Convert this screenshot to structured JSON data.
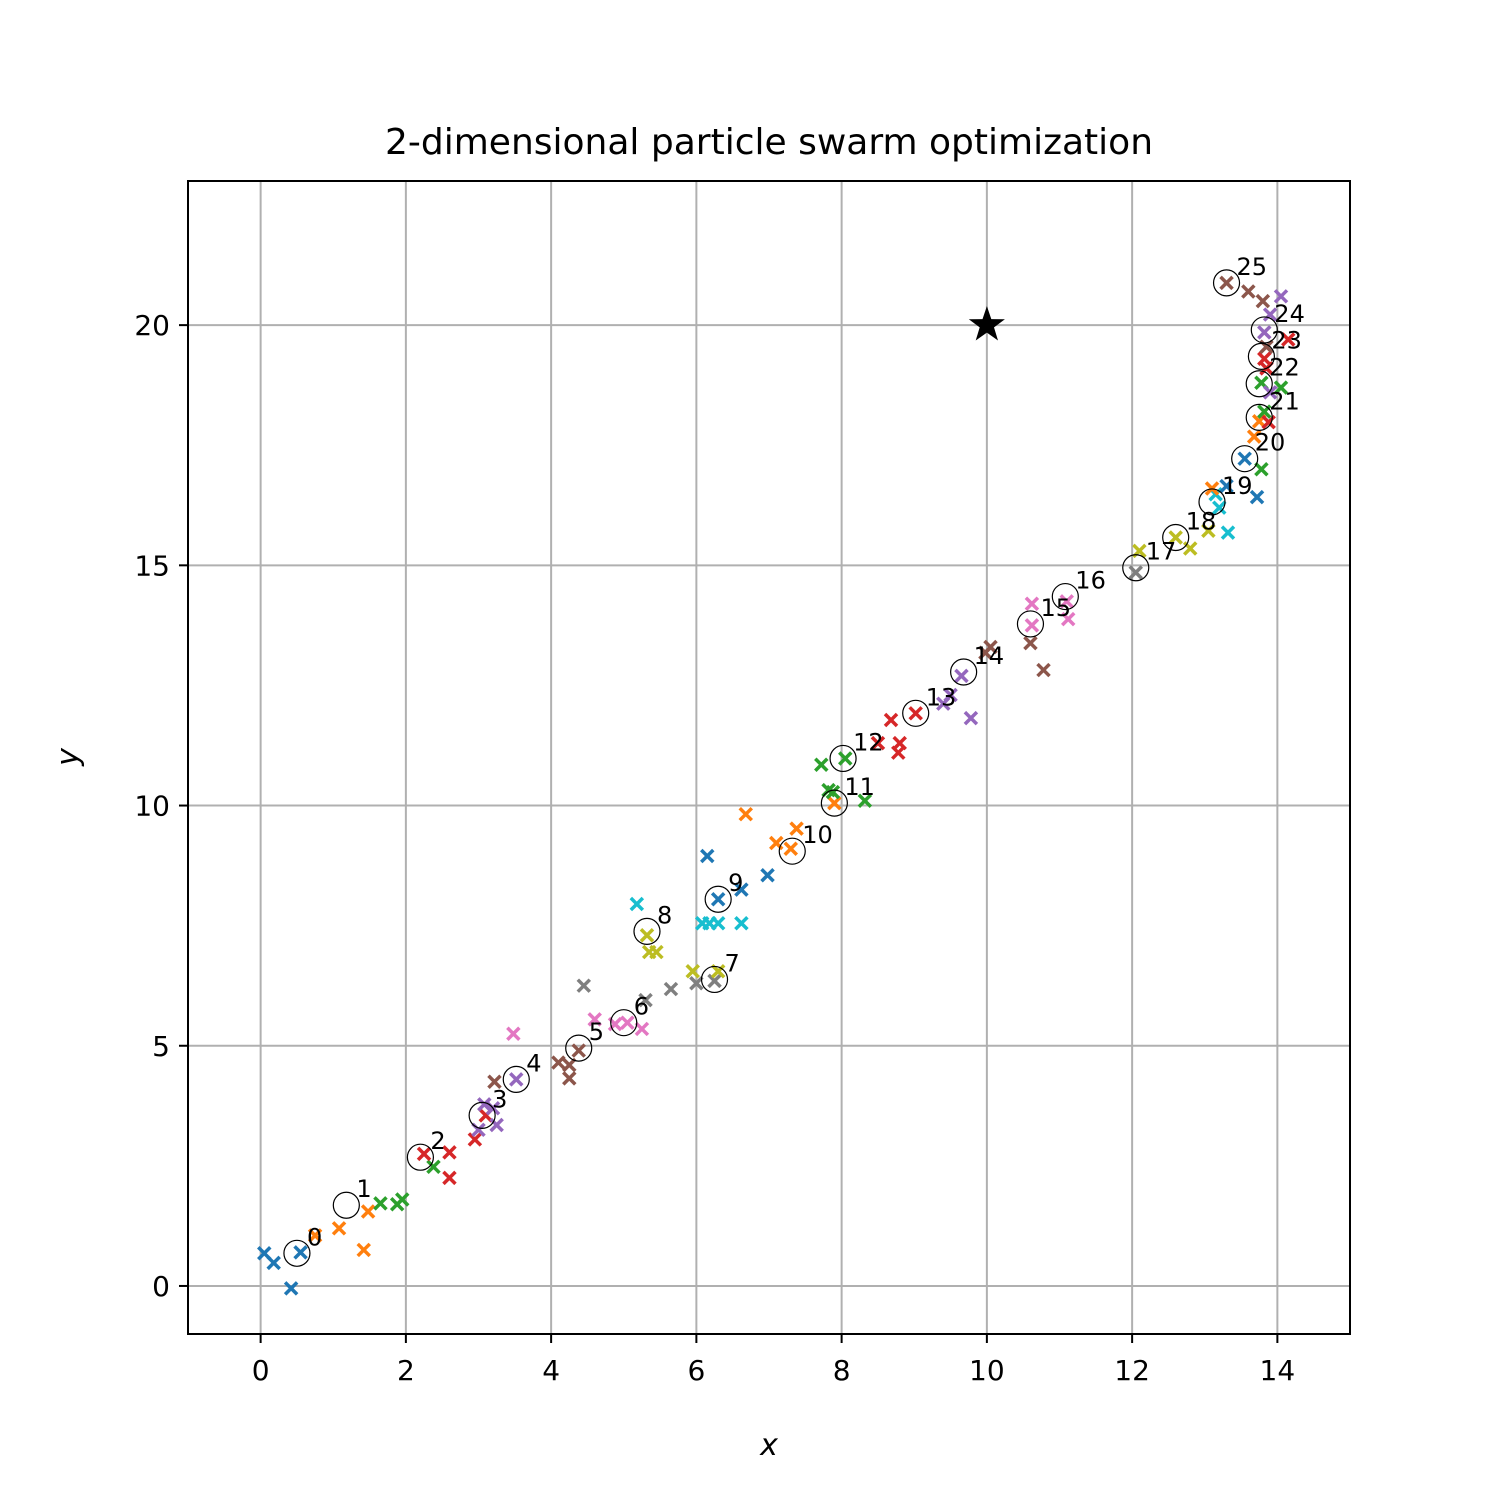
{
  "chart_data": {
    "type": "scatter",
    "title": "2-dimensional particle swarm optimization",
    "xlabel": "x",
    "ylabel": "y",
    "xlim": [
      -1,
      15
    ],
    "ylim": [
      -1,
      23
    ],
    "xticks": [
      0,
      2,
      4,
      6,
      8,
      10,
      12,
      14
    ],
    "yticks": [
      0,
      5,
      10,
      15,
      20
    ],
    "grid": true,
    "target": {
      "x": 10,
      "y": 20,
      "marker": "star"
    },
    "colors": [
      "#1f77b4",
      "#ff7f0e",
      "#2ca02c",
      "#d62728",
      "#9467bd",
      "#8c564b",
      "#e377c2",
      "#7f7f7f",
      "#bcbd22",
      "#17becf"
    ],
    "iterations": [
      {
        "label": "0",
        "best": [
          0.5,
          0.68
        ],
        "color": "#1f77b4",
        "particles": [
          [
            0.05,
            0.68
          ],
          [
            0.18,
            0.48
          ],
          [
            0.42,
            -0.05
          ],
          [
            0.55,
            0.7
          ]
        ]
      },
      {
        "label": "1",
        "best": [
          1.18,
          1.68
        ],
        "color": "#ff7f0e",
        "particles": [
          [
            0.75,
            1.05
          ],
          [
            1.08,
            1.2
          ],
          [
            1.42,
            0.75
          ],
          [
            1.48,
            1.55
          ]
        ]
      },
      {
        "label": "2",
        "best": [
          2.2,
          2.68
        ],
        "color": "#2ca02c",
        "particles": [
          [
            1.65,
            1.72
          ],
          [
            1.88,
            1.7
          ],
          [
            1.95,
            1.8
          ],
          [
            2.38,
            2.48
          ]
        ]
      },
      {
        "label": "3",
        "best": [
          3.05,
          3.55
        ],
        "color": "#d62728",
        "particles": [
          [
            2.25,
            2.75
          ],
          [
            2.6,
            2.78
          ],
          [
            2.6,
            2.25
          ],
          [
            2.95,
            3.05
          ],
          [
            3.1,
            3.55
          ]
        ]
      },
      {
        "label": "4",
        "best": [
          3.52,
          4.3
        ],
        "color": "#9467bd",
        "particles": [
          [
            3.0,
            3.25
          ],
          [
            3.08,
            3.78
          ],
          [
            3.2,
            3.7
          ],
          [
            3.25,
            3.35
          ],
          [
            3.52,
            4.3
          ]
        ]
      },
      {
        "label": "5",
        "best": [
          4.38,
          4.95
        ],
        "color": "#8c564b",
        "particles": [
          [
            3.22,
            4.25
          ],
          [
            4.1,
            4.65
          ],
          [
            4.25,
            4.6
          ],
          [
            4.25,
            4.32
          ],
          [
            4.38,
            4.9
          ]
        ]
      },
      {
        "label": "6",
        "best": [
          5.0,
          5.48
        ],
        "color": "#e377c2",
        "particles": [
          [
            3.48,
            5.25
          ],
          [
            4.6,
            5.55
          ],
          [
            4.88,
            5.45
          ],
          [
            5.05,
            5.48
          ],
          [
            5.25,
            5.35
          ]
        ]
      },
      {
        "label": "7",
        "best": [
          6.25,
          6.38
        ],
        "color": "#7f7f7f",
        "particles": [
          [
            4.45,
            6.25
          ],
          [
            5.3,
            5.95
          ],
          [
            5.65,
            6.18
          ],
          [
            6.0,
            6.3
          ],
          [
            6.25,
            6.35
          ]
        ]
      },
      {
        "label": "8",
        "best": [
          5.32,
          7.38
        ],
        "color": "#bcbd22",
        "particles": [
          [
            5.32,
            7.3
          ],
          [
            5.35,
            6.95
          ],
          [
            5.45,
            6.95
          ],
          [
            5.95,
            6.55
          ],
          [
            6.3,
            6.55
          ]
        ]
      },
      {
        "label": "9",
        "best": [
          6.3,
          8.05
        ],
        "color": "#17becf",
        "particles": [
          [
            5.18,
            7.95
          ],
          [
            6.08,
            7.55
          ],
          [
            6.18,
            7.55
          ],
          [
            6.3,
            7.55
          ],
          [
            6.62,
            7.55
          ]
        ]
      },
      {
        "label": "10",
        "best": [
          7.32,
          9.05
        ],
        "color": "#1f77b4",
        "particles": [
          [
            6.15,
            8.95
          ],
          [
            6.3,
            8.05
          ],
          [
            6.62,
            8.25
          ],
          [
            6.98,
            8.55
          ]
        ]
      },
      {
        "label": "11",
        "best": [
          7.9,
          10.05
        ],
        "color": "#ff7f0e",
        "particles": [
          [
            6.68,
            9.82
          ],
          [
            7.1,
            9.22
          ],
          [
            7.3,
            9.1
          ],
          [
            7.38,
            9.52
          ],
          [
            7.9,
            10.05
          ]
        ]
      },
      {
        "label": "12",
        "best": [
          8.02,
          10.98
        ],
        "color": "#2ca02c",
        "particles": [
          [
            7.88,
            10.28
          ],
          [
            7.72,
            10.85
          ],
          [
            7.82,
            10.32
          ],
          [
            8.05,
            10.98
          ],
          [
            8.32,
            10.1
          ]
        ]
      },
      {
        "label": "13",
        "best": [
          9.02,
          11.92
        ],
        "color": "#d62728",
        "particles": [
          [
            8.5,
            11.3
          ],
          [
            8.68,
            11.78
          ],
          [
            8.78,
            11.1
          ],
          [
            8.8,
            11.3
          ],
          [
            9.02,
            11.92
          ]
        ]
      },
      {
        "label": "14",
        "best": [
          9.68,
          12.78
        ],
        "color": "#9467bd",
        "particles": [
          [
            9.4,
            12.12
          ],
          [
            9.5,
            12.3
          ],
          [
            9.65,
            12.7
          ],
          [
            9.78,
            11.82
          ]
        ]
      },
      {
        "label": "15",
        "best": [
          10.6,
          13.78
        ],
        "color": "#8c564b",
        "particles": [
          [
            9.98,
            13.18
          ],
          [
            10.05,
            13.3
          ],
          [
            10.6,
            13.38
          ],
          [
            10.78,
            12.82
          ]
        ]
      },
      {
        "label": "16",
        "best": [
          11.08,
          14.35
        ],
        "color": "#e377c2",
        "particles": [
          [
            10.62,
            14.2
          ],
          [
            10.62,
            13.75
          ],
          [
            11.1,
            14.25
          ],
          [
            11.12,
            13.88
          ]
        ]
      },
      {
        "label": "17",
        "best": [
          12.05,
          14.95
        ],
        "color": "#7f7f7f",
        "particles": [
          [
            12.05,
            14.85
          ]
        ]
      },
      {
        "label": "18",
        "best": [
          12.6,
          15.58
        ],
        "color": "#bcbd22",
        "particles": [
          [
            12.1,
            15.3
          ],
          [
            12.6,
            15.58
          ],
          [
            12.8,
            15.35
          ],
          [
            13.05,
            15.72
          ]
        ]
      },
      {
        "label": "19",
        "best": [
          13.1,
          16.32
        ],
        "color": "#17becf",
        "particles": [
          [
            13.2,
            16.2
          ],
          [
            13.32,
            15.68
          ],
          [
            13.15,
            16.48
          ]
        ]
      },
      {
        "label": "20",
        "best": [
          13.55,
          17.22
        ],
        "color": "#1f77b4",
        "particles": [
          [
            13.3,
            16.65
          ],
          [
            13.55,
            17.22
          ],
          [
            13.72,
            16.42
          ]
        ]
      },
      {
        "label": "21",
        "best": [
          13.75,
          18.08
        ],
        "color": "#ff7f0e",
        "particles": [
          [
            13.1,
            16.6
          ],
          [
            13.68,
            17.68
          ],
          [
            13.75,
            18.0
          ]
        ]
      },
      {
        "label": "22",
        "best": [
          13.75,
          18.78
        ],
        "color": "#2ca02c",
        "particles": [
          [
            13.78,
            17.0
          ],
          [
            13.82,
            18.2
          ],
          [
            13.78,
            18.8
          ],
          [
            14.05,
            18.7
          ]
        ]
      },
      {
        "label": "23",
        "best": [
          13.78,
          19.35
        ],
        "color": "#d62728",
        "particles": [
          [
            13.88,
            17.98
          ],
          [
            13.82,
            19.3
          ],
          [
            13.85,
            19.1
          ],
          [
            14.15,
            19.7
          ]
        ]
      },
      {
        "label": "24",
        "best": [
          13.82,
          19.9
        ],
        "color": "#9467bd",
        "particles": [
          [
            13.82,
            19.85
          ],
          [
            13.9,
            20.22
          ],
          [
            14.05,
            20.6
          ],
          [
            13.9,
            18.6
          ]
        ]
      },
      {
        "label": "25",
        "best": [
          13.3,
          20.88
        ],
        "color": "#8c564b",
        "particles": [
          [
            13.3,
            20.88
          ],
          [
            13.6,
            20.7
          ],
          [
            13.8,
            20.5
          ],
          [
            13.85,
            19.55
          ]
        ]
      }
    ]
  }
}
